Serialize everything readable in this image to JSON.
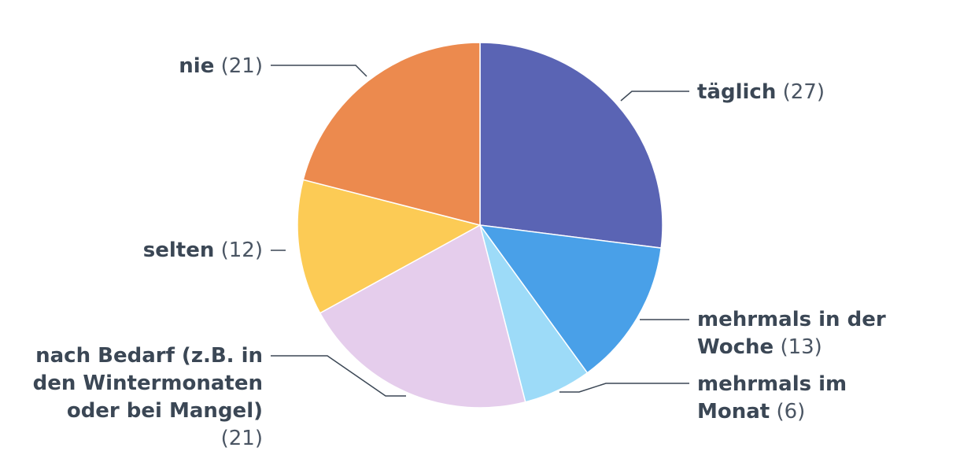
{
  "chart_data": {
    "type": "pie",
    "slices": [
      {
        "label": "täglich",
        "value": 27,
        "value_text": "(27)",
        "color": "#5a64b4"
      },
      {
        "label": "mehrmals in der Woche",
        "value": 13,
        "value_text": "(13)",
        "color": "#49a0e8"
      },
      {
        "label": "mehrmals im Monat",
        "value": 6,
        "value_text": "(6)",
        "color": "#9ddbf8"
      },
      {
        "label": "nach Bedarf (z.B. in den Wintermonaten oder bei Mangel)",
        "value": 21,
        "value_text": "(21)",
        "color": "#e5cdec"
      },
      {
        "label": "selten",
        "value": 12,
        "value_text": "(12)",
        "color": "#fccb55"
      },
      {
        "label": "nie",
        "value": 21,
        "value_text": "(21)",
        "color": "#ec8a4e"
      }
    ]
  }
}
